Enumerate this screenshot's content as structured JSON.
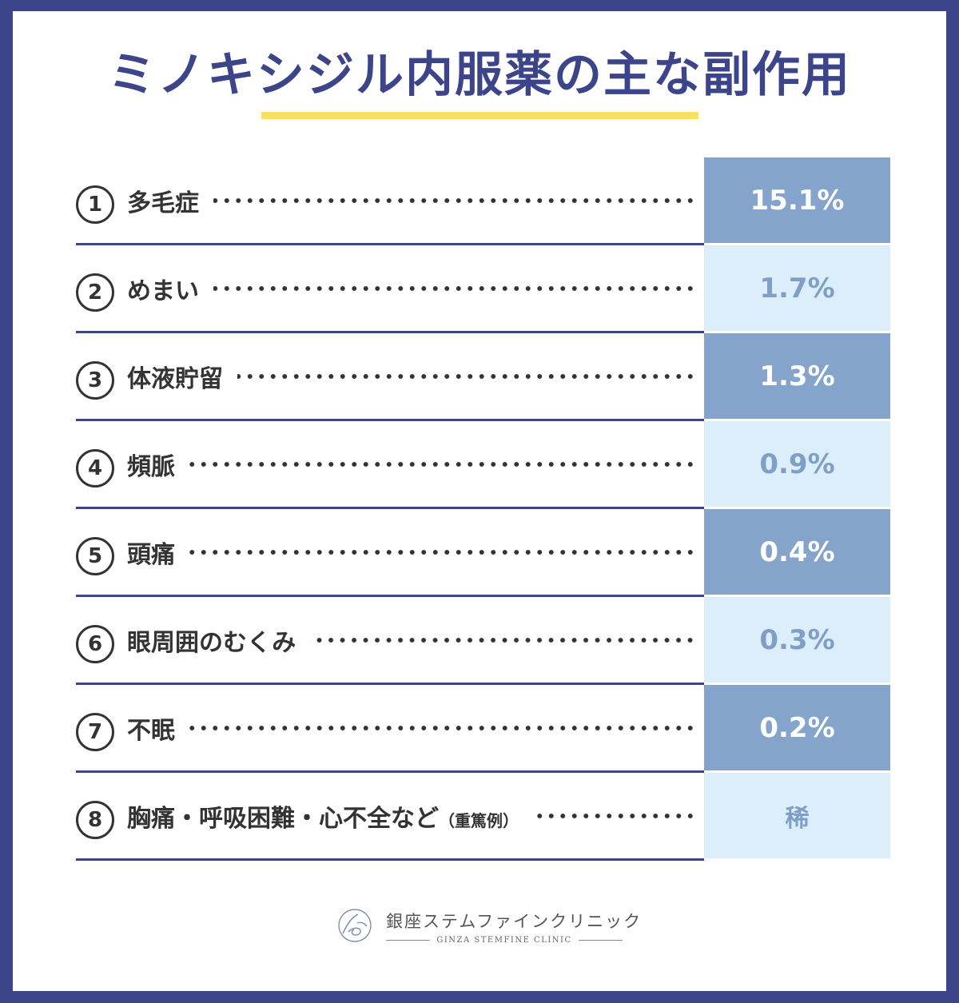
{
  "title": "ミノキシジル内服薬の主な副作用",
  "colors": {
    "frame": "#3d458a",
    "accent_underline": "#f7e062",
    "value_dark_bg": "#84a4cb",
    "value_light_bg": "#ddeefb",
    "value_light_text": "#7f9fc6"
  },
  "rows": [
    {
      "number": "1",
      "label": "多毛症",
      "note": "",
      "value": "15.1%",
      "style": "dark"
    },
    {
      "number": "2",
      "label": "めまい",
      "note": "",
      "value": "1.7%",
      "style": "light"
    },
    {
      "number": "3",
      "label": "体液貯留",
      "note": "",
      "value": "1.3%",
      "style": "dark"
    },
    {
      "number": "4",
      "label": "頻脈",
      "note": "",
      "value": "0.9%",
      "style": "light"
    },
    {
      "number": "5",
      "label": "頭痛",
      "note": "",
      "value": "0.4%",
      "style": "dark"
    },
    {
      "number": "6",
      "label": "眼周囲のむくみ",
      "note": "",
      "value": "0.3%",
      "style": "light"
    },
    {
      "number": "7",
      "label": "不眠",
      "note": "",
      "value": "0.2%",
      "style": "dark"
    },
    {
      "number": "8",
      "label": "胸痛・呼吸困難・心不全など",
      "note": "（重篤例）",
      "value": "稀",
      "style": "light"
    }
  ],
  "logo": {
    "name_jp": "銀座ステムファインクリニック",
    "name_en": "GINZA STEMFINE CLINIC",
    "mark": "clinic-logo-mark"
  }
}
